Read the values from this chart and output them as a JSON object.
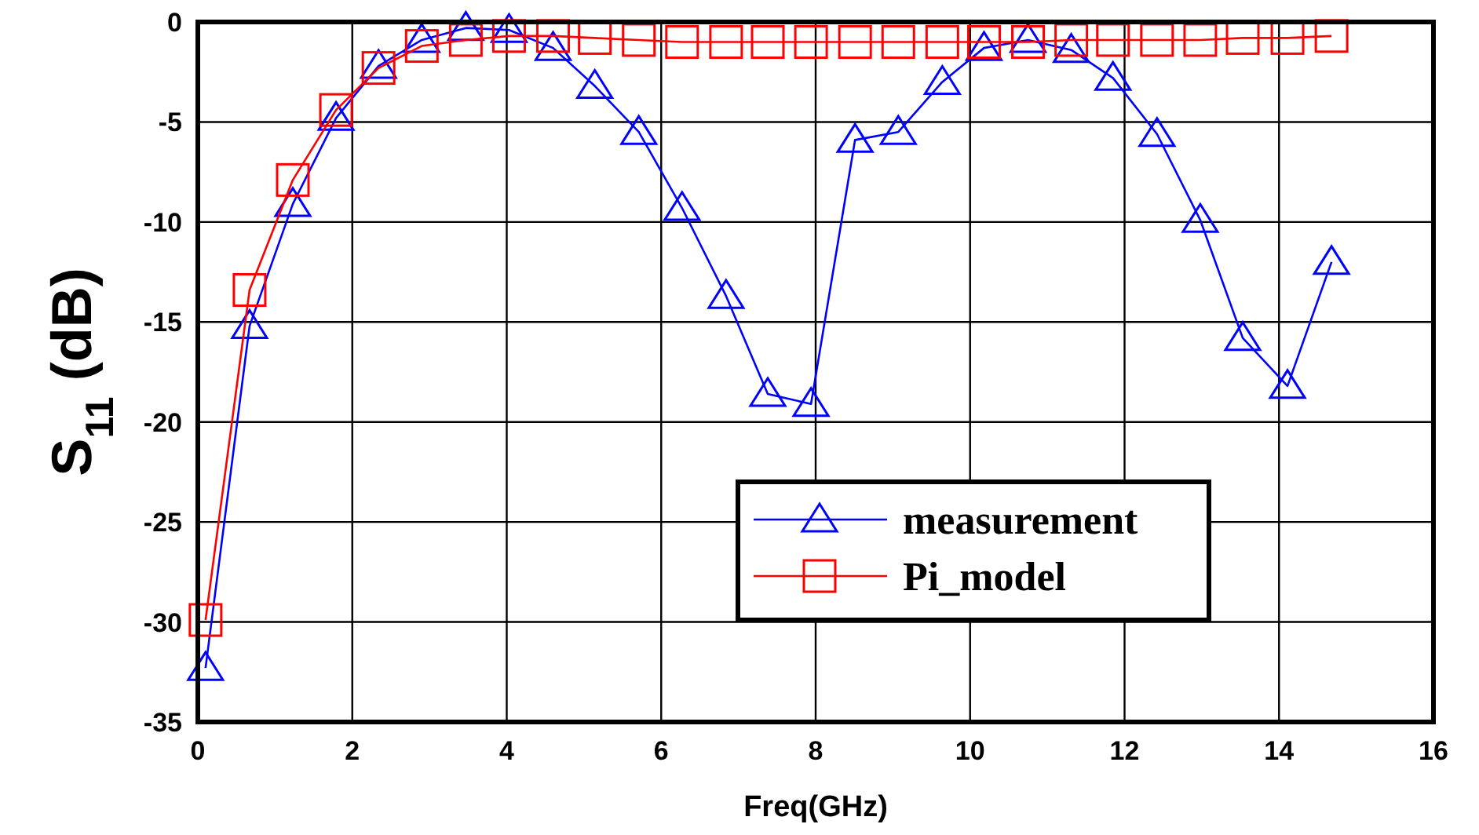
{
  "chart_data": {
    "type": "line",
    "xlabel": "Freq(GHz)",
    "ylabel": "S$_{11}$ (dB)",
    "xlim": [
      0,
      16
    ],
    "xticks": [
      0,
      2,
      4,
      6,
      8,
      10,
      12,
      14,
      16
    ],
    "ylim": [
      -35,
      0
    ],
    "yticks": [
      -35,
      -30,
      -25,
      -20,
      -15,
      -10,
      -5,
      0
    ],
    "grid": true,
    "legend": "bottom right",
    "line_style": "solid",
    "series": [
      {
        "name": "measurement",
        "color": "#0000ff",
        "marker": "triangle",
        "x": [
          0.1,
          0.67,
          1.23,
          1.79,
          2.34,
          2.9,
          3.47,
          4.03,
          4.6,
          5.14,
          5.71,
          6.27,
          6.84,
          7.38,
          7.94,
          8.51,
          9.07,
          9.64,
          10.18,
          10.75,
          11.31,
          11.85,
          12.42,
          12.98,
          13.53,
          14.11,
          14.68
        ],
        "values": [
          -32.3,
          -15.2,
          -9.1,
          -4.8,
          -2.2,
          -0.9,
          -0.3,
          -0.4,
          -1.3,
          -3.2,
          -5.5,
          -9.3,
          -13.7,
          -18.6,
          -19.1,
          -5.9,
          -5.5,
          -3.0,
          -1.3,
          -0.9,
          -1.4,
          -2.8,
          -5.6,
          -9.9,
          -15.8,
          -18.2,
          -12.0
        ]
      },
      {
        "name": "Pi_model",
        "color": "#ff0000",
        "marker": "square",
        "x": [
          0.1,
          0.67,
          1.23,
          1.79,
          2.34,
          2.9,
          3.47,
          4.03,
          4.6,
          5.14,
          5.71,
          6.27,
          6.84,
          7.38,
          7.94,
          8.51,
          9.07,
          9.64,
          10.18,
          10.75,
          11.31,
          11.85,
          12.42,
          12.98,
          13.53,
          14.11,
          14.68
        ],
        "values": [
          -29.9,
          -13.4,
          -7.9,
          -4.4,
          -2.3,
          -1.2,
          -0.9,
          -0.7,
          -0.7,
          -0.8,
          -0.9,
          -1.0,
          -1.0,
          -1.0,
          -1.0,
          -1.0,
          -1.0,
          -1.0,
          -1.0,
          -1.0,
          -0.9,
          -0.9,
          -0.9,
          -0.9,
          -0.8,
          -0.8,
          -0.7
        ]
      }
    ]
  }
}
